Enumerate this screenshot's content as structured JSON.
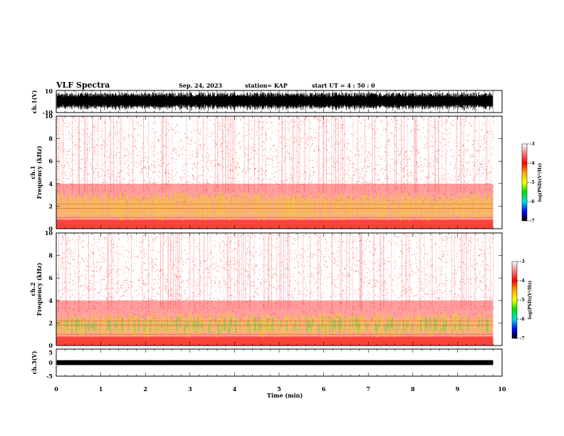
{
  "header": {
    "title": "VLF Spectra",
    "date": "Sep. 24, 2023",
    "station": "station= KAP",
    "start": "start  UT =   4 : 50 : 0"
  },
  "chart_data": [
    {
      "type": "line",
      "name": "ch1-waveform",
      "ylabel": "ch.1(V)",
      "ylim": [
        -10,
        10
      ],
      "ytick_labels": [
        "10",
        "-10"
      ],
      "xlim": [
        0,
        10
      ],
      "data_extent_min": 9.8
    },
    {
      "type": "heatmap",
      "name": "ch1-spectrogram",
      "ylabel_line1": "ch.1",
      "ylabel_line2": "Frequency  (kHz)",
      "ylim": [
        0,
        10
      ],
      "yticks": [
        "0",
        "2",
        "4",
        "6",
        "8",
        "10"
      ],
      "xlim": [
        0,
        10
      ],
      "data_extent_min": 9.8,
      "colorbar": {
        "label": "log(PSD)(V²/Hz)",
        "range": [
          -7,
          -3
        ],
        "tick_labels": [
          "-3",
          "-4",
          "-5",
          "-6",
          "-7"
        ]
      }
    },
    {
      "type": "heatmap",
      "name": "ch2-spectrogram",
      "ylabel_line1": "ch.2",
      "ylabel_line2": "Frequency  (kHz)",
      "ylim": [
        0,
        10
      ],
      "yticks": [
        "0",
        "2",
        "4",
        "6",
        "8",
        "10"
      ],
      "xlim": [
        0,
        10
      ],
      "data_extent_min": 9.8,
      "colorbar": {
        "label": "log(PSD)(V²/Hz)",
        "range": [
          -7,
          -3
        ],
        "tick_labels": [
          "-3",
          "-4",
          "-5",
          "-6",
          "-7"
        ]
      }
    },
    {
      "type": "line",
      "name": "ch3-waveform",
      "ylabel": "ch.3(V)",
      "ylim": [
        -5,
        5
      ],
      "ytick_labels": [
        "5",
        "0",
        "-5"
      ],
      "xlim": [
        0,
        10
      ],
      "data_extent_min": 9.8
    }
  ],
  "xaxis": {
    "label": "Time  (min)",
    "tick_labels": [
      "0",
      "1",
      "2",
      "3",
      "4",
      "5",
      "6",
      "7",
      "8",
      "9",
      "10"
    ]
  },
  "colors": {
    "spectrogram_low": "#ff3a3a",
    "spectrogram_band": "#e6e600",
    "spectrogram_green": "#30e030",
    "background": "#ffffff"
  }
}
